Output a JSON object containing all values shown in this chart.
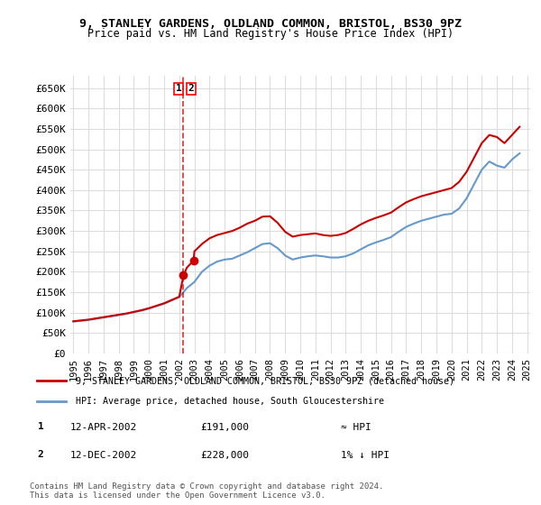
{
  "title1": "9, STANLEY GARDENS, OLDLAND COMMON, BRISTOL, BS30 9PZ",
  "title2": "Price paid vs. HM Land Registry's House Price Index (HPI)",
  "legend_line1": "9, STANLEY GARDENS, OLDLAND COMMON, BRISTOL, BS30 9PZ (detached house)",
  "legend_line2": "HPI: Average price, detached house, South Gloucestershire",
  "sale1_label": "1",
  "sale1_date": "12-APR-2002",
  "sale1_price": "£191,000",
  "sale1_hpi": "≈ HPI",
  "sale2_label": "2",
  "sale2_date": "12-DEC-2002",
  "sale2_price": "£228,000",
  "sale2_hpi": "1% ↓ HPI",
  "footer": "Contains HM Land Registry data © Crown copyright and database right 2024.\nThis data is licensed under the Open Government Licence v3.0.",
  "ylim": [
    0,
    680000
  ],
  "yticks": [
    0,
    50000,
    100000,
    150000,
    200000,
    250000,
    300000,
    350000,
    400000,
    450000,
    500000,
    550000,
    600000,
    650000
  ],
  "ytick_labels": [
    "£0",
    "£50K",
    "£100K",
    "£150K",
    "£200K",
    "£250K",
    "£300K",
    "£350K",
    "£400K",
    "£450K",
    "£500K",
    "£550K",
    "£600K",
    "£650K"
  ],
  "sale1_x": 2002.28,
  "sale1_y": 191000,
  "sale2_x": 2002.95,
  "sale2_y": 228000,
  "vline_x": 2002.28,
  "red_color": "#cc0000",
  "blue_color": "#6699cc",
  "background_color": "#ffffff",
  "grid_color": "#dddddd",
  "hpi_years": [
    1995.0,
    1995.5,
    1996.0,
    1996.5,
    1997.0,
    1997.5,
    1998.0,
    1998.5,
    1999.0,
    1999.5,
    2000.0,
    2000.5,
    2001.0,
    2001.5,
    2002.0,
    2002.5,
    2003.0,
    2003.5,
    2004.0,
    2004.5,
    2005.0,
    2005.5,
    2006.0,
    2006.5,
    2007.0,
    2007.5,
    2008.0,
    2008.5,
    2009.0,
    2009.5,
    2010.0,
    2010.5,
    2011.0,
    2011.5,
    2012.0,
    2012.5,
    2013.0,
    2013.5,
    2014.0,
    2014.5,
    2015.0,
    2015.5,
    2016.0,
    2016.5,
    2017.0,
    2017.5,
    2018.0,
    2018.5,
    2019.0,
    2019.5,
    2020.0,
    2020.5,
    2021.0,
    2021.5,
    2022.0,
    2022.5,
    2023.0,
    2023.5,
    2024.0,
    2024.5
  ],
  "hpi_values": [
    78000,
    80000,
    82000,
    85000,
    88000,
    91000,
    94000,
    97000,
    101000,
    105000,
    110000,
    116000,
    122000,
    130000,
    138000,
    160000,
    175000,
    200000,
    215000,
    225000,
    230000,
    232000,
    240000,
    248000,
    258000,
    268000,
    270000,
    258000,
    240000,
    230000,
    235000,
    238000,
    240000,
    238000,
    235000,
    235000,
    238000,
    245000,
    255000,
    265000,
    272000,
    278000,
    285000,
    298000,
    310000,
    318000,
    325000,
    330000,
    335000,
    340000,
    342000,
    355000,
    380000,
    415000,
    450000,
    470000,
    460000,
    455000,
    475000,
    490000
  ],
  "price_years": [
    1995.0,
    1995.5,
    1996.0,
    1996.5,
    1997.0,
    1997.5,
    1998.0,
    1998.5,
    1999.0,
    1999.5,
    2000.0,
    2000.5,
    2001.0,
    2001.5,
    2002.0,
    2002.28,
    2002.5,
    2002.95,
    2003.0,
    2003.5,
    2004.0,
    2004.5,
    2005.0,
    2005.5,
    2006.0,
    2006.5,
    2007.0,
    2007.5,
    2008.0,
    2008.5,
    2009.0,
    2009.5,
    2010.0,
    2010.5,
    2011.0,
    2011.5,
    2012.0,
    2012.5,
    2013.0,
    2013.5,
    2014.0,
    2014.5,
    2015.0,
    2015.5,
    2016.0,
    2016.5,
    2017.0,
    2017.5,
    2018.0,
    2018.5,
    2019.0,
    2019.5,
    2020.0,
    2020.5,
    2021.0,
    2021.5,
    2022.0,
    2022.5,
    2023.0,
    2023.5,
    2024.0,
    2024.5
  ],
  "price_values": [
    79000,
    81000,
    83000,
    86000,
    89000,
    92000,
    95000,
    98000,
    102000,
    106000,
    111000,
    117000,
    123000,
    131000,
    139000,
    191000,
    210000,
    228000,
    250000,
    268000,
    282000,
    290000,
    295000,
    300000,
    308000,
    318000,
    325000,
    335000,
    336000,
    320000,
    298000,
    286000,
    290000,
    292000,
    294000,
    290000,
    288000,
    290000,
    295000,
    305000,
    316000,
    325000,
    332000,
    338000,
    345000,
    358000,
    370000,
    378000,
    385000,
    390000,
    395000,
    400000,
    405000,
    420000,
    445000,
    480000,
    515000,
    535000,
    530000,
    515000,
    535000,
    555000
  ],
  "xtick_years": [
    1995,
    1996,
    1997,
    1998,
    1999,
    2000,
    2001,
    2002,
    2003,
    2004,
    2005,
    2006,
    2007,
    2008,
    2009,
    2010,
    2011,
    2012,
    2013,
    2014,
    2015,
    2016,
    2017,
    2018,
    2019,
    2020,
    2021,
    2022,
    2023,
    2024,
    2025
  ]
}
